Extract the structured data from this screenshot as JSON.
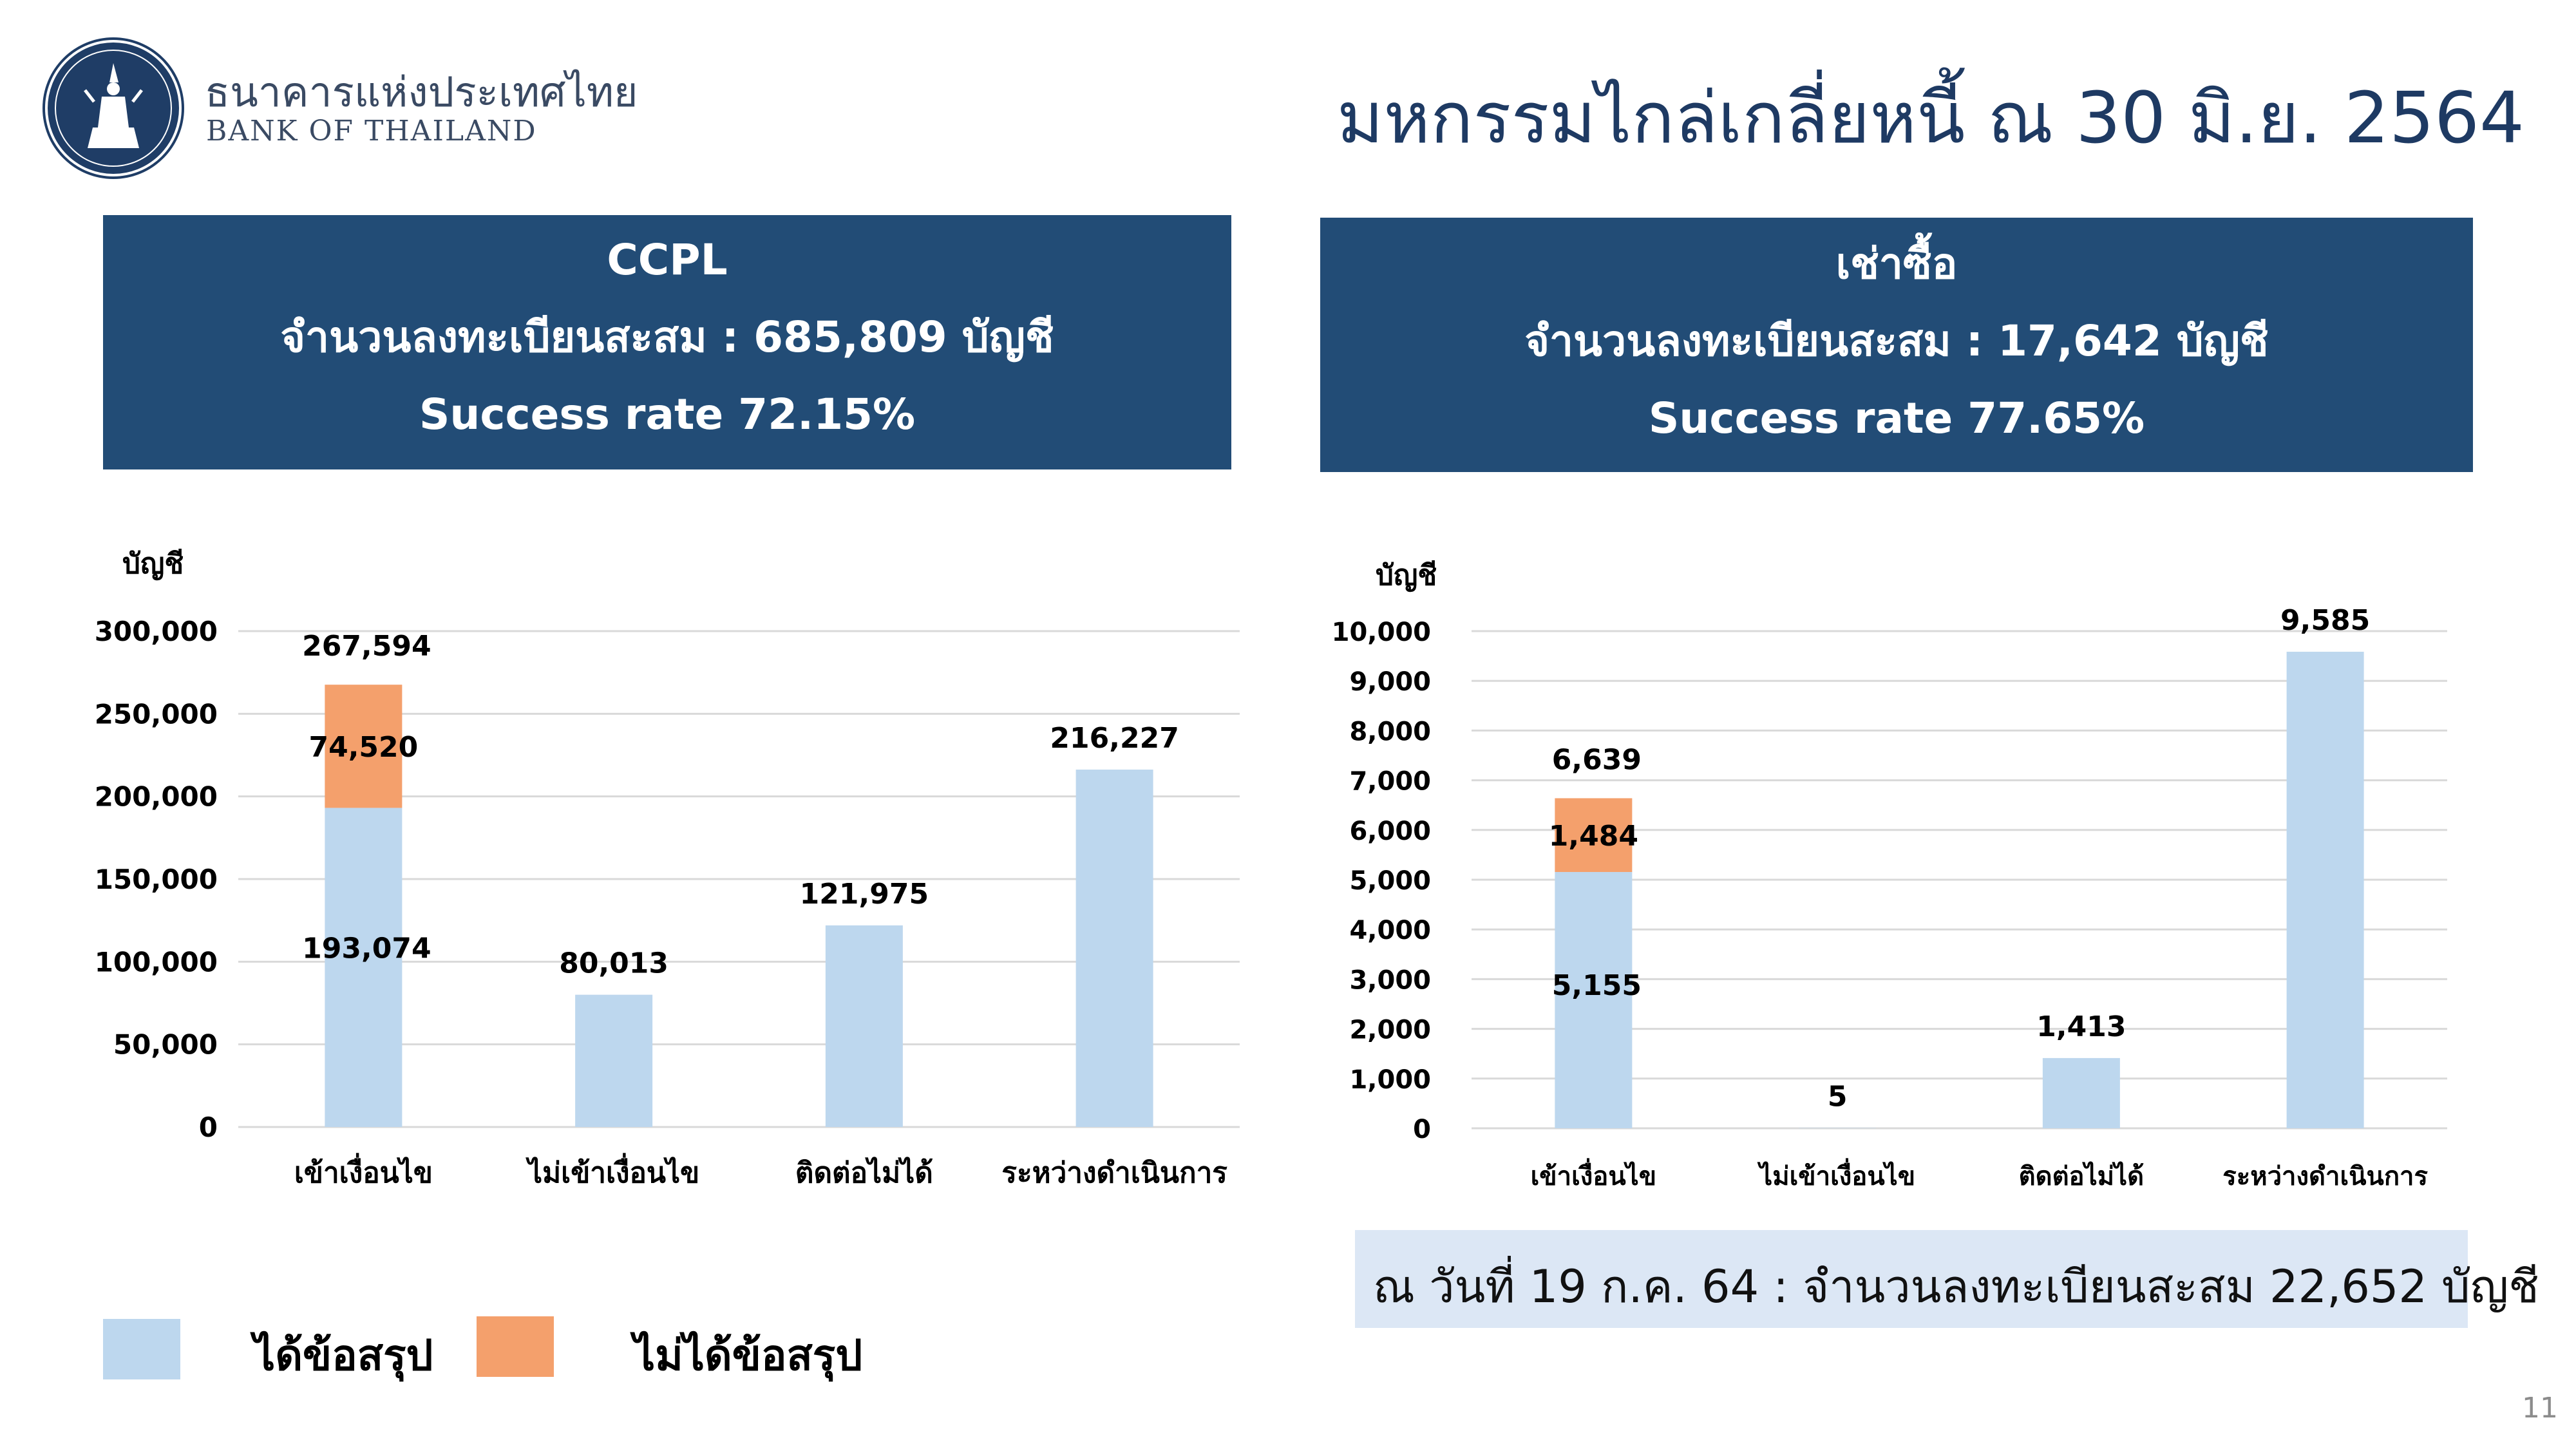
{
  "header": {
    "brand_thai": "ธนาคารแห่งประเทศไทย",
    "brand_english": "BANK OF THAILAND",
    "title": "มหกรรมไกล่เกลี่ยหนี้ ณ 30 มิ.ย. 2564"
  },
  "colors": {
    "header_bg": "#224c76",
    "resolved": "#bdd7ee",
    "unresolved": "#f4a06c",
    "title_text": "#1e3a63"
  },
  "panels": {
    "left": {
      "title": "CCPL",
      "registered": "จำนวนลงทะเบียนสะสม : 685,809 บัญชี",
      "success": "Success rate 72.15%"
    },
    "right": {
      "title": "เช่าซื้อ",
      "registered": "จำนวนลงทะเบียนสะสม : 17,642 บัญชี",
      "success": "Success rate 77.65%"
    }
  },
  "chart_data": [
    {
      "type": "bar",
      "stacked": true,
      "ylabel": "บัญชี",
      "ylim": [
        0,
        300000
      ],
      "yticks": [
        0,
        50000,
        100000,
        150000,
        200000,
        250000,
        300000
      ],
      "ytick_labels": [
        "0",
        "50,000",
        "100,000",
        "150,000",
        "200,000",
        "250,000",
        "300,000"
      ],
      "grid": true,
      "categories": [
        "เข้าเงื่อนไข",
        "ไม่เข้าเงื่อนไข",
        "ติดต่อไม่ได้",
        "ระหว่างดำเนินการ"
      ],
      "series": [
        {
          "name": "ได้ข้อสรุป",
          "values": [
            193074,
            80013,
            121975,
            216227
          ],
          "labels": [
            "193,074",
            "80,013",
            "121,975",
            "216,227"
          ]
        },
        {
          "name": "ไม่ได้ข้อสรุป",
          "values": [
            74520,
            0,
            0,
            0
          ],
          "labels": [
            "74,520",
            "",
            "",
            ""
          ]
        }
      ],
      "total_labels": [
        "267,594",
        "",
        "",
        ""
      ]
    },
    {
      "type": "bar",
      "stacked": true,
      "ylabel": "บัญชี",
      "ylim": [
        0,
        10000
      ],
      "yticks": [
        0,
        1000,
        2000,
        3000,
        4000,
        5000,
        6000,
        7000,
        8000,
        9000,
        10000
      ],
      "ytick_labels": [
        "0",
        "1,000",
        "2,000",
        "3,000",
        "4,000",
        "5,000",
        "6,000",
        "7,000",
        "8,000",
        "9,000",
        "10,000"
      ],
      "grid": true,
      "categories": [
        "เข้าเงื่อนไข",
        "ไม่เข้าเงื่อนไข",
        "ติดต่อไม่ได้",
        "ระหว่างดำเนินการ"
      ],
      "series": [
        {
          "name": "ได้ข้อสรุป",
          "values": [
            5155,
            5,
            1413,
            9585
          ],
          "labels": [
            "5,155",
            "5",
            "1,413",
            "9,585"
          ]
        },
        {
          "name": "ไม่ได้ข้อสรุป",
          "values": [
            1484,
            0,
            0,
            0
          ],
          "labels": [
            "1,484",
            "",
            "",
            ""
          ]
        }
      ],
      "total_labels": [
        "6,639",
        "",
        "",
        ""
      ]
    }
  ],
  "legend": {
    "resolved": "ได้ข้อสรุป",
    "unresolved": "ไม่ได้ข้อสรุป"
  },
  "note": "ณ วันที่ 19 ก.ค. 64 : จำนวนลงทะเบียนสะสม 22,652 บัญชี",
  "page_number": "11"
}
